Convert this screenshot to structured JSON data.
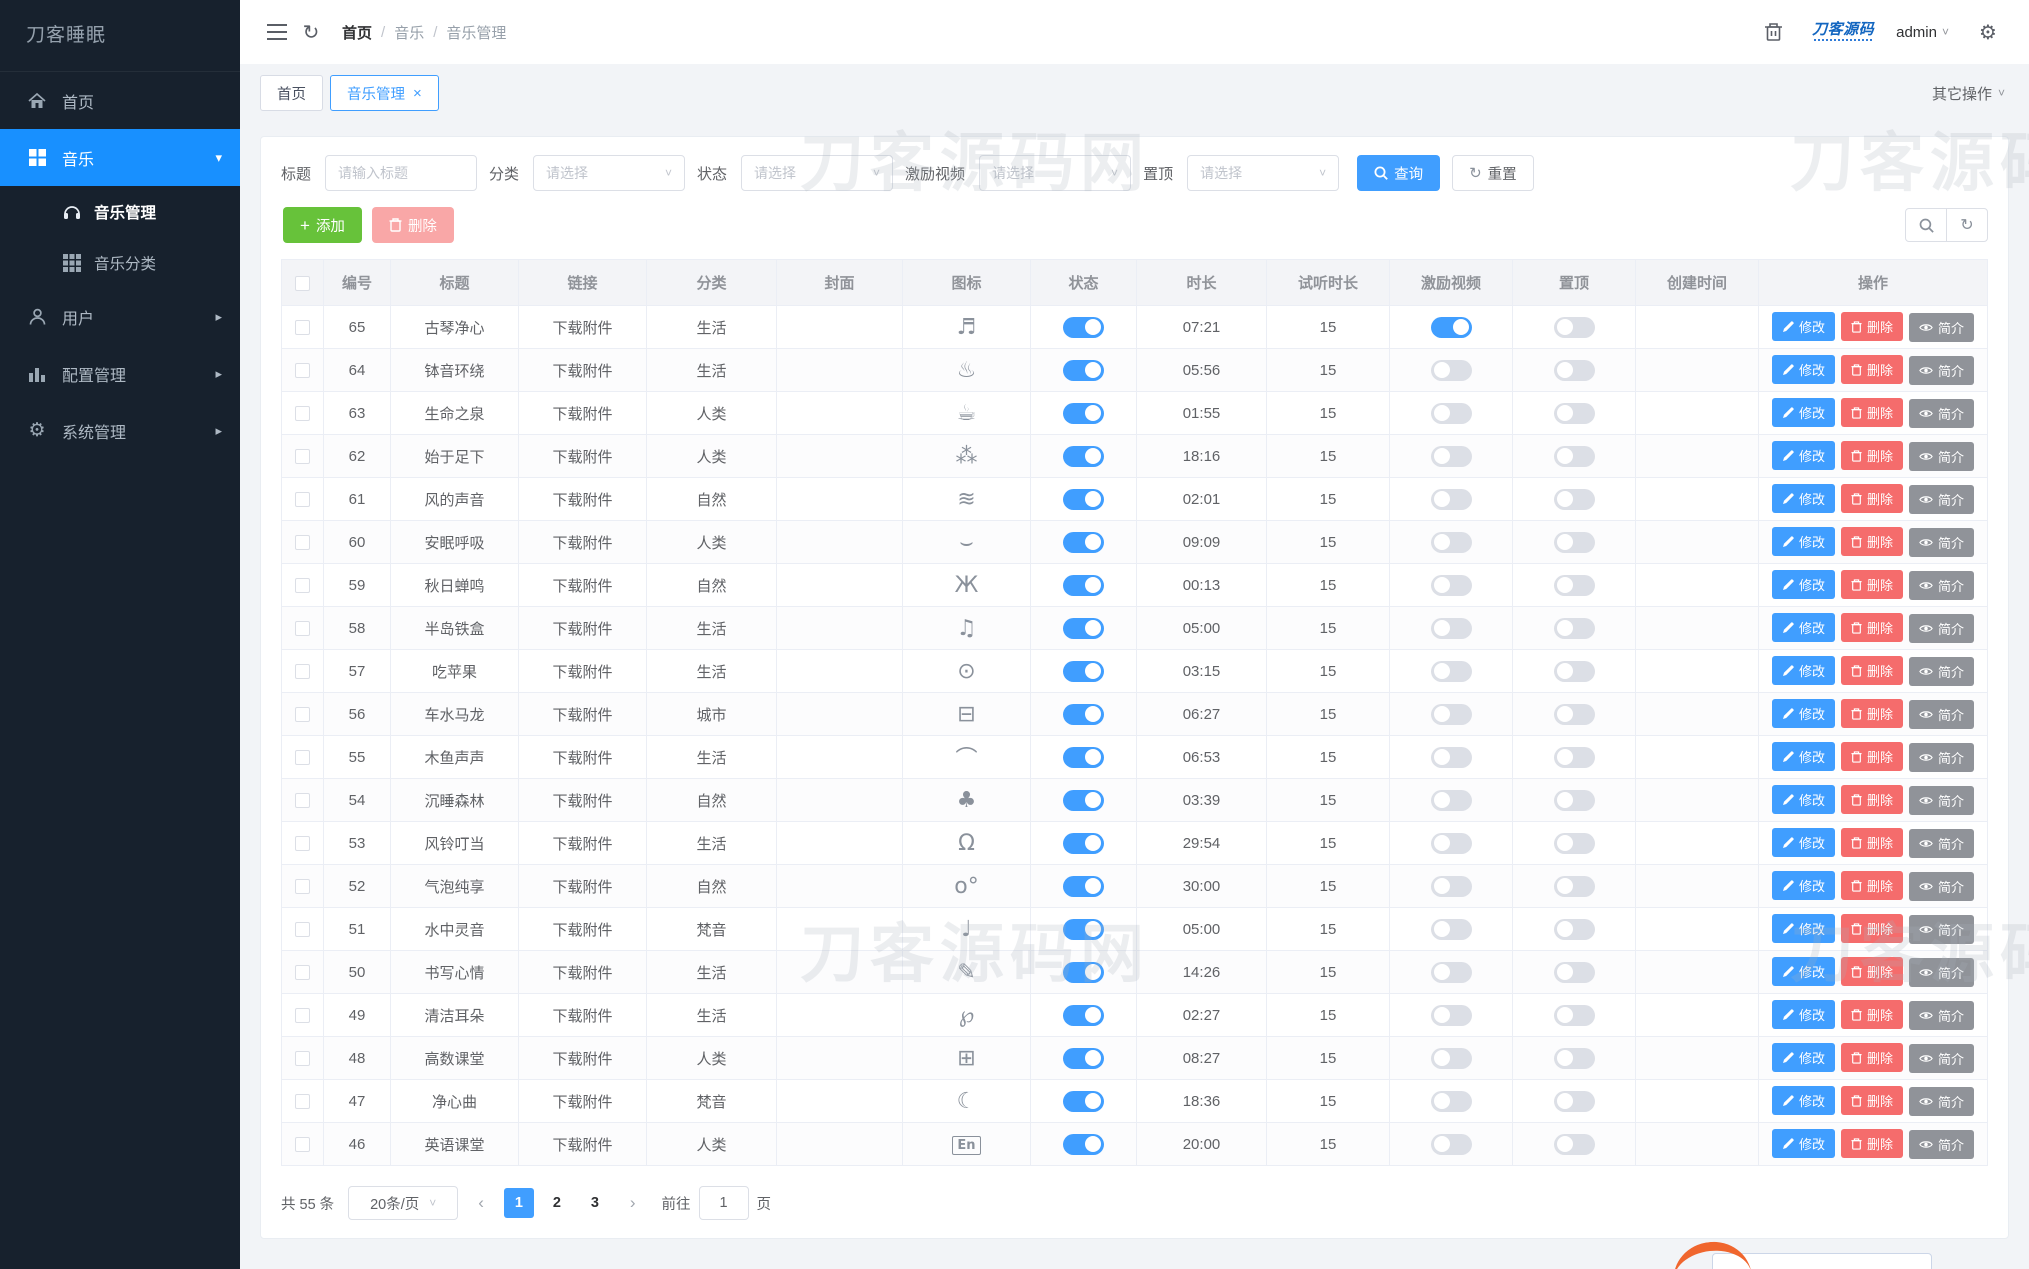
{
  "sidebar": {
    "title": "刀客睡眠",
    "items": [
      {
        "label": "首页",
        "icon": "home-icon",
        "style": "item"
      },
      {
        "label": "音乐",
        "icon": "music-grid-icon",
        "style": "parent-active",
        "caret": "down"
      },
      {
        "label": "音乐管理",
        "icon": "headphones-icon",
        "style": "sub-active"
      },
      {
        "label": "音乐分类",
        "icon": "category-icon",
        "style": "sub"
      },
      {
        "label": "用户",
        "icon": "user-icon",
        "style": "item",
        "caret": "right"
      },
      {
        "label": "配置管理",
        "icon": "chart-icon",
        "style": "item",
        "caret": "right"
      },
      {
        "label": "系统管理",
        "icon": "gear-icon",
        "style": "item",
        "caret": "right"
      }
    ]
  },
  "topbar": {
    "breadcrumb": [
      "首页",
      "音乐",
      "音乐管理"
    ],
    "logo_text": "刀客源码",
    "username": "admin"
  },
  "tabs": {
    "items": [
      {
        "label": "首页",
        "active": false,
        "closable": false
      },
      {
        "label": "音乐管理",
        "active": true,
        "closable": true
      }
    ],
    "other_actions": "其它操作"
  },
  "filters": {
    "title_label": "标题",
    "title_placeholder": "请输入标题",
    "selects": [
      {
        "label": "分类",
        "placeholder": "请选择"
      },
      {
        "label": "状态",
        "placeholder": "请选择"
      },
      {
        "label": "激励视频",
        "placeholder": "请选择"
      },
      {
        "label": "置顶",
        "placeholder": "请选择"
      }
    ],
    "search_btn": "查询",
    "reset_btn": "重置"
  },
  "toolbar": {
    "add_btn": "添加",
    "delete_btn": "删除"
  },
  "table": {
    "headers": [
      "编号",
      "标题",
      "链接",
      "分类",
      "封面",
      "图标",
      "状态",
      "时长",
      "试听时长",
      "激励视频",
      "置顶",
      "创建时间",
      "操作"
    ],
    "link_text": "下载附件",
    "op_edit": "修改",
    "op_delete": "删除",
    "op_view": "简介",
    "rows": [
      {
        "id": "65",
        "title": "古琴净心",
        "category": "生活",
        "icon": "lyre-icon",
        "duration": "07:21",
        "trial": "15",
        "status": true,
        "incentive": true,
        "top": false
      },
      {
        "id": "64",
        "title": "钵音环绕",
        "category": "生活",
        "icon": "singing-bowl-icon",
        "duration": "05:56",
        "trial": "15",
        "status": true,
        "incentive": false,
        "top": false
      },
      {
        "id": "63",
        "title": "生命之泉",
        "category": "人类",
        "icon": "mug-icon",
        "duration": "01:55",
        "trial": "15",
        "status": true,
        "incentive": false,
        "top": false
      },
      {
        "id": "62",
        "title": "始于足下",
        "category": "人类",
        "icon": "footprints-icon",
        "duration": "18:16",
        "trial": "15",
        "status": true,
        "incentive": false,
        "top": false
      },
      {
        "id": "61",
        "title": "风的声音",
        "category": "自然",
        "icon": "wind-icon",
        "duration": "02:01",
        "trial": "15",
        "status": true,
        "incentive": false,
        "top": false
      },
      {
        "id": "60",
        "title": "安眠呼吸",
        "category": "人类",
        "icon": "lips-icon",
        "duration": "09:09",
        "trial": "15",
        "status": true,
        "incentive": false,
        "top": false
      },
      {
        "id": "59",
        "title": "秋日蝉鸣",
        "category": "自然",
        "icon": "cicada-icon",
        "duration": "00:13",
        "trial": "15",
        "status": true,
        "incentive": false,
        "top": false
      },
      {
        "id": "58",
        "title": "半岛铁盒",
        "category": "生活",
        "icon": "music-box-icon",
        "duration": "05:00",
        "trial": "15",
        "status": true,
        "incentive": false,
        "top": false
      },
      {
        "id": "57",
        "title": "吃苹果",
        "category": "生活",
        "icon": "apple-icon",
        "duration": "03:15",
        "trial": "15",
        "status": true,
        "incentive": false,
        "top": false
      },
      {
        "id": "56",
        "title": "车水马龙",
        "category": "城市",
        "icon": "car-icon",
        "duration": "06:27",
        "trial": "15",
        "status": true,
        "incentive": false,
        "top": false
      },
      {
        "id": "55",
        "title": "木鱼声声",
        "category": "生活",
        "icon": "wooden-fish-icon",
        "duration": "06:53",
        "trial": "15",
        "status": true,
        "incentive": false,
        "top": false
      },
      {
        "id": "54",
        "title": "沉睡森林",
        "category": "自然",
        "icon": "forest-icon",
        "duration": "03:39",
        "trial": "15",
        "status": true,
        "incentive": false,
        "top": false
      },
      {
        "id": "53",
        "title": "风铃叮当",
        "category": "生活",
        "icon": "bell-icon",
        "duration": "29:54",
        "trial": "15",
        "status": true,
        "incentive": false,
        "top": false
      },
      {
        "id": "52",
        "title": "气泡纯享",
        "category": "自然",
        "icon": "bubbles-icon",
        "duration": "30:00",
        "trial": "15",
        "status": true,
        "incentive": false,
        "top": false
      },
      {
        "id": "51",
        "title": "水中灵音",
        "category": "梵音",
        "icon": "treble-clef-icon",
        "duration": "05:00",
        "trial": "15",
        "status": true,
        "incentive": false,
        "top": false
      },
      {
        "id": "50",
        "title": "书写心情",
        "category": "生活",
        "icon": "pencil-icon",
        "duration": "14:26",
        "trial": "15",
        "status": true,
        "incentive": false,
        "top": false
      },
      {
        "id": "49",
        "title": "清洁耳朵",
        "category": "生活",
        "icon": "ear-icon",
        "duration": "02:27",
        "trial": "15",
        "status": true,
        "incentive": false,
        "top": false
      },
      {
        "id": "48",
        "title": "高数课堂",
        "category": "人类",
        "icon": "math-icon",
        "duration": "08:27",
        "trial": "15",
        "status": true,
        "incentive": false,
        "top": false
      },
      {
        "id": "47",
        "title": "净心曲",
        "category": "梵音",
        "icon": "moon-icon",
        "duration": "18:36",
        "trial": "15",
        "status": true,
        "incentive": false,
        "top": false
      },
      {
        "id": "46",
        "title": "英语课堂",
        "category": "人类",
        "icon": "english-icon",
        "duration": "20:00",
        "trial": "15",
        "status": true,
        "incentive": false,
        "top": false
      }
    ]
  },
  "pagination": {
    "total": "共 55 条",
    "page_size": "20条/页",
    "pages": [
      "1",
      "2",
      "3"
    ],
    "current": "1",
    "goto_label": "前往",
    "goto_value": "1",
    "goto_suffix": "页"
  },
  "watermark": "刀客源码网"
}
